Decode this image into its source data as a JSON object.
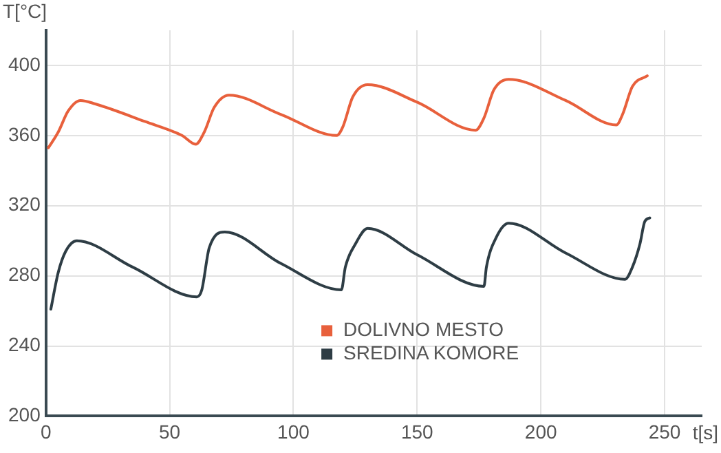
{
  "chart_data": {
    "type": "line",
    "xlabel": "t[s]",
    "ylabel": "T[°C]",
    "xlim": [
      0,
      265
    ],
    "xticks": [
      0,
      50,
      100,
      150,
      200,
      250
    ],
    "ylim": [
      200,
      420
    ],
    "yticks": [
      200,
      240,
      280,
      320,
      360,
      400
    ],
    "grid": true,
    "legend": "bottom",
    "marker": "none",
    "line_style": "solid",
    "series": [
      {
        "name": "DOLIVNO MESTO",
        "color": "#e8603c",
        "x": [
          1,
          5,
          9,
          14,
          20,
          40,
          55,
          60.5,
          64,
          68,
          74,
          95,
          117.5,
          120,
          124,
          130,
          150,
          173.6,
          177,
          181,
          187,
          210,
          230.5,
          233,
          237,
          243
        ],
        "values": [
          353,
          362,
          374,
          380,
          378,
          368,
          360,
          355,
          362,
          376,
          383,
          372,
          360,
          365,
          382,
          389,
          379,
          363,
          370,
          386,
          392,
          380,
          366,
          372,
          388,
          394
        ]
      },
      {
        "name": "SREDINA KOMORE",
        "color": "#2e3d45",
        "x": [
          2,
          5,
          8,
          12.5,
          35,
          61,
          63,
          66,
          72.3,
          95,
          119.4,
          121,
          125,
          130,
          150,
          177,
          178,
          182,
          187,
          210,
          234,
          237,
          240,
          242,
          244
        ],
        "values": [
          261,
          282,
          294,
          300,
          285,
          268,
          272,
          296,
          305,
          287,
          272,
          285,
          298,
          307,
          292,
          274,
          285,
          302,
          310,
          293,
          278,
          285,
          298,
          311,
          313
        ]
      }
    ]
  }
}
